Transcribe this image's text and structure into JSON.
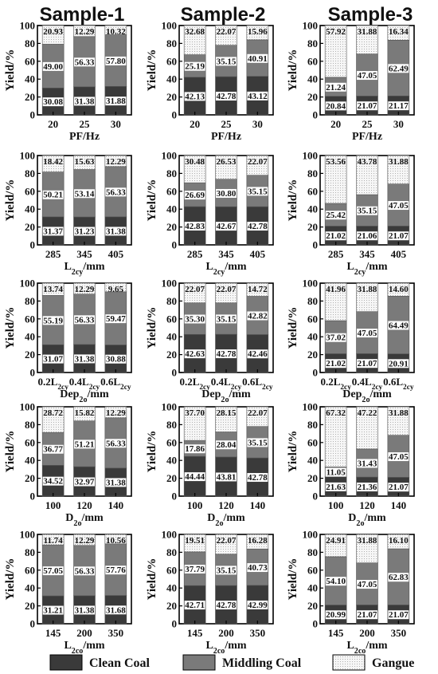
{
  "column_titles": [
    "Sample-1",
    "Sample-2",
    "Sample-3"
  ],
  "legend": {
    "entries": [
      {
        "name": "Clean Coal",
        "color": "#3a3a3a",
        "pattern": "solid"
      },
      {
        "name": "Middling Coal",
        "color": "#7a7a7a",
        "pattern": "solid"
      },
      {
        "name": "Gangue",
        "color": "#f4f4f4",
        "pattern": "dots"
      }
    ],
    "placement": "bottom"
  },
  "chart_data": [
    {
      "type": "bar",
      "stacked": true,
      "row": 0,
      "col": 0,
      "title": "Sample-1",
      "ylabel": "Yield/%",
      "xlabel": "PF/Hz",
      "ylim": [
        0,
        100
      ],
      "yticks": [
        0,
        20,
        40,
        60,
        80,
        100
      ],
      "categories": [
        "20",
        "25",
        "30"
      ],
      "series": [
        {
          "name": "Clean Coal",
          "values": [
            30.08,
            31.38,
            31.88
          ]
        },
        {
          "name": "Middling Coal",
          "values": [
            49.0,
            56.33,
            57.8
          ]
        },
        {
          "name": "Gangue",
          "values": [
            20.93,
            12.29,
            10.32
          ]
        }
      ]
    },
    {
      "type": "bar",
      "stacked": true,
      "row": 0,
      "col": 1,
      "title": "Sample-2",
      "ylabel": "Yield/%",
      "xlabel": "PF/Hz",
      "ylim": [
        0,
        100
      ],
      "yticks": [
        0,
        20,
        40,
        60,
        80,
        100
      ],
      "categories": [
        "20",
        "25",
        "30"
      ],
      "series": [
        {
          "name": "Clean Coal",
          "values": [
            42.13,
            42.78,
            43.12
          ]
        },
        {
          "name": "Middling Coal",
          "values": [
            25.19,
            35.15,
            40.91
          ]
        },
        {
          "name": "Gangue",
          "values": [
            32.68,
            22.07,
            15.96
          ]
        }
      ]
    },
    {
      "type": "bar",
      "stacked": true,
      "row": 0,
      "col": 2,
      "title": "Sample-3",
      "ylabel": "Yield/%",
      "xlabel": "PF/Hz",
      "ylim": [
        0,
        100
      ],
      "yticks": [
        0,
        20,
        40,
        60,
        80,
        100
      ],
      "categories": [
        "20",
        "25",
        "30"
      ],
      "series": [
        {
          "name": "Clean Coal",
          "values": [
            20.84,
            21.07,
            21.17
          ]
        },
        {
          "name": "Middling Coal",
          "values": [
            21.24,
            47.05,
            62.49
          ]
        },
        {
          "name": "Gangue",
          "values": [
            57.92,
            31.88,
            16.34
          ]
        }
      ]
    },
    {
      "type": "bar",
      "stacked": true,
      "row": 1,
      "col": 0,
      "ylabel": "Yield/%",
      "xlabel": "L2cy/mm",
      "ylim": [
        0,
        100
      ],
      "yticks": [
        0,
        20,
        40,
        60,
        80,
        100
      ],
      "categories": [
        "285",
        "345",
        "405"
      ],
      "series": [
        {
          "name": "Clean Coal",
          "values": [
            31.37,
            31.23,
            31.38
          ]
        },
        {
          "name": "Middling Coal",
          "values": [
            50.21,
            53.14,
            56.33
          ]
        },
        {
          "name": "Gangue",
          "values": [
            18.42,
            15.63,
            12.29
          ]
        }
      ]
    },
    {
      "type": "bar",
      "stacked": true,
      "row": 1,
      "col": 1,
      "ylabel": "Yield/%",
      "xlabel": "L2cy/mm",
      "ylim": [
        0,
        100
      ],
      "yticks": [
        0,
        20,
        40,
        60,
        80,
        100
      ],
      "categories": [
        "285",
        "345",
        "405"
      ],
      "series": [
        {
          "name": "Clean Coal",
          "values": [
            42.83,
            42.67,
            42.78
          ]
        },
        {
          "name": "Middling Coal",
          "values": [
            26.69,
            30.8,
            35.15
          ]
        },
        {
          "name": "Gangue",
          "values": [
            30.48,
            26.53,
            22.07
          ]
        }
      ]
    },
    {
      "type": "bar",
      "stacked": true,
      "row": 1,
      "col": 2,
      "ylabel": "Yield/%",
      "xlabel": "L2cy/mm",
      "ylim": [
        0,
        100
      ],
      "yticks": [
        0,
        20,
        40,
        60,
        80,
        100
      ],
      "categories": [
        "285",
        "345",
        "405"
      ],
      "series": [
        {
          "name": "Clean Coal",
          "values": [
            21.02,
            21.06,
            21.07
          ]
        },
        {
          "name": "Middling Coal",
          "values": [
            25.42,
            35.15,
            47.05
          ]
        },
        {
          "name": "Gangue",
          "values": [
            53.56,
            43.78,
            31.88
          ]
        }
      ]
    },
    {
      "type": "bar",
      "stacked": true,
      "row": 2,
      "col": 0,
      "ylabel": "Yield/%",
      "xlabel": "Dep2o/mm",
      "ylim": [
        0,
        100
      ],
      "yticks": [
        0,
        20,
        40,
        60,
        80,
        100
      ],
      "categories": [
        "0.2L2cy",
        "0.4L2cy",
        "0.6L2cy"
      ],
      "series": [
        {
          "name": "Clean Coal",
          "values": [
            31.07,
            31.38,
            30.88
          ]
        },
        {
          "name": "Middling Coal",
          "values": [
            55.19,
            56.33,
            59.47
          ]
        },
        {
          "name": "Gangue",
          "values": [
            13.74,
            12.29,
            9.65
          ]
        }
      ]
    },
    {
      "type": "bar",
      "stacked": true,
      "row": 2,
      "col": 1,
      "ylabel": "Yield/%",
      "xlabel": "Dep2o/mm",
      "ylim": [
        0,
        100
      ],
      "yticks": [
        0,
        20,
        40,
        60,
        80,
        100
      ],
      "categories": [
        "0.2L2cy",
        "0.4L2cy",
        "0.6L2cy"
      ],
      "series": [
        {
          "name": "Clean Coal",
          "values": [
            42.63,
            42.78,
            42.46
          ]
        },
        {
          "name": "Middling Coal",
          "values": [
            35.3,
            35.15,
            42.82
          ]
        },
        {
          "name": "Gangue",
          "values": [
            22.07,
            22.07,
            14.72
          ]
        }
      ]
    },
    {
      "type": "bar",
      "stacked": true,
      "row": 2,
      "col": 2,
      "ylabel": "Yield/%",
      "xlabel": "Dep2o/mm",
      "ylim": [
        0,
        100
      ],
      "yticks": [
        0,
        20,
        40,
        60,
        80,
        100
      ],
      "categories": [
        "0.2L2cy",
        "0.4L2cy",
        "0.6L2cy"
      ],
      "series": [
        {
          "name": "Clean Coal",
          "values": [
            21.02,
            21.07,
            20.91
          ]
        },
        {
          "name": "Middling Coal",
          "values": [
            37.02,
            47.05,
            64.49
          ]
        },
        {
          "name": "Gangue",
          "values": [
            41.96,
            31.88,
            14.6
          ]
        }
      ]
    },
    {
      "type": "bar",
      "stacked": true,
      "row": 3,
      "col": 0,
      "ylabel": "Yield/%",
      "xlabel": "D2o/mm",
      "ylim": [
        0,
        100
      ],
      "yticks": [
        0,
        20,
        40,
        60,
        80,
        100
      ],
      "categories": [
        "100",
        "120",
        "140"
      ],
      "series": [
        {
          "name": "Clean Coal",
          "values": [
            34.52,
            32.97,
            31.38
          ]
        },
        {
          "name": "Middling Coal",
          "values": [
            36.77,
            51.21,
            56.33
          ]
        },
        {
          "name": "Gangue",
          "values": [
            28.72,
            15.82,
            12.29
          ]
        }
      ]
    },
    {
      "type": "bar",
      "stacked": true,
      "row": 3,
      "col": 1,
      "ylabel": "Yield/%",
      "xlabel": "D2o/mm",
      "ylim": [
        0,
        100
      ],
      "yticks": [
        0,
        20,
        40,
        60,
        80,
        100
      ],
      "categories": [
        "100",
        "120",
        "140"
      ],
      "series": [
        {
          "name": "Clean Coal",
          "values": [
            44.44,
            43.81,
            42.78
          ]
        },
        {
          "name": "Middling Coal",
          "values": [
            17.86,
            28.04,
            35.15
          ]
        },
        {
          "name": "Gangue",
          "values": [
            37.7,
            28.15,
            22.07
          ]
        }
      ]
    },
    {
      "type": "bar",
      "stacked": true,
      "row": 3,
      "col": 2,
      "ylabel": "Yield/%",
      "xlabel": "D2o/mm",
      "ylim": [
        0,
        100
      ],
      "yticks": [
        0,
        20,
        40,
        60,
        80,
        100
      ],
      "categories": [
        "100",
        "120",
        "140"
      ],
      "series": [
        {
          "name": "Clean Coal",
          "values": [
            21.63,
            21.36,
            21.07
          ]
        },
        {
          "name": "Middling Coal",
          "values": [
            11.05,
            31.43,
            47.05
          ]
        },
        {
          "name": "Gangue",
          "values": [
            67.32,
            47.22,
            31.88
          ]
        }
      ]
    },
    {
      "type": "bar",
      "stacked": true,
      "row": 4,
      "col": 0,
      "ylabel": "Yield/%",
      "xlabel": "L2co/mm",
      "ylim": [
        0,
        100
      ],
      "yticks": [
        0,
        20,
        40,
        60,
        80,
        100
      ],
      "categories": [
        "145",
        "200",
        "350"
      ],
      "series": [
        {
          "name": "Clean Coal",
          "values": [
            31.21,
            31.38,
            31.68
          ]
        },
        {
          "name": "Middling Coal",
          "values": [
            57.05,
            56.33,
            57.76
          ]
        },
        {
          "name": "Gangue",
          "values": [
            11.74,
            12.29,
            10.56
          ]
        }
      ]
    },
    {
      "type": "bar",
      "stacked": true,
      "row": 4,
      "col": 1,
      "ylabel": "Yield/%",
      "xlabel": "L2co/mm",
      "ylim": [
        0,
        100
      ],
      "yticks": [
        0,
        20,
        40,
        60,
        80,
        100
      ],
      "categories": [
        "145",
        "200",
        "350"
      ],
      "series": [
        {
          "name": "Clean Coal",
          "values": [
            42.71,
            42.78,
            42.99
          ]
        },
        {
          "name": "Middling Coal",
          "values": [
            37.79,
            35.15,
            40.73
          ]
        },
        {
          "name": "Gangue",
          "values": [
            19.51,
            22.07,
            16.28
          ]
        }
      ]
    },
    {
      "type": "bar",
      "stacked": true,
      "row": 4,
      "col": 2,
      "ylabel": "Yield/%",
      "xlabel": "L2co/mm",
      "ylim": [
        0,
        100
      ],
      "yticks": [
        0,
        20,
        40,
        60,
        80,
        100
      ],
      "categories": [
        "145",
        "200",
        "350"
      ],
      "series": [
        {
          "name": "Clean Coal",
          "values": [
            20.99,
            21.07,
            21.07
          ]
        },
        {
          "name": "Middling Coal",
          "values": [
            54.1,
            47.05,
            62.83
          ]
        },
        {
          "name": "Gangue",
          "values": [
            24.91,
            31.88,
            16.1
          ]
        }
      ]
    }
  ]
}
